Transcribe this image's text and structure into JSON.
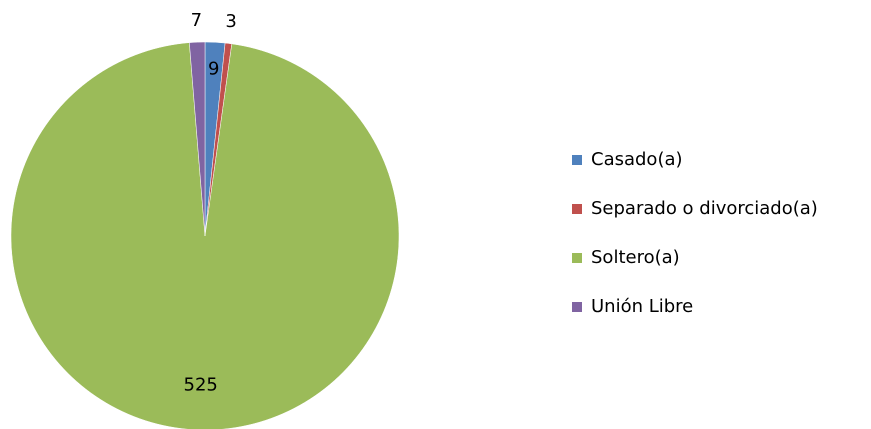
{
  "chart_data": {
    "type": "pie",
    "categories": [
      "Casado(a)",
      "Separado o divorciado(a)",
      "Soltero(a)",
      "Unión Libre"
    ],
    "values": [
      9,
      3,
      525,
      7
    ],
    "colors": [
      "#4f81bd",
      "#c0504d",
      "#9bbb59",
      "#8064a2"
    ],
    "legend": "right"
  }
}
